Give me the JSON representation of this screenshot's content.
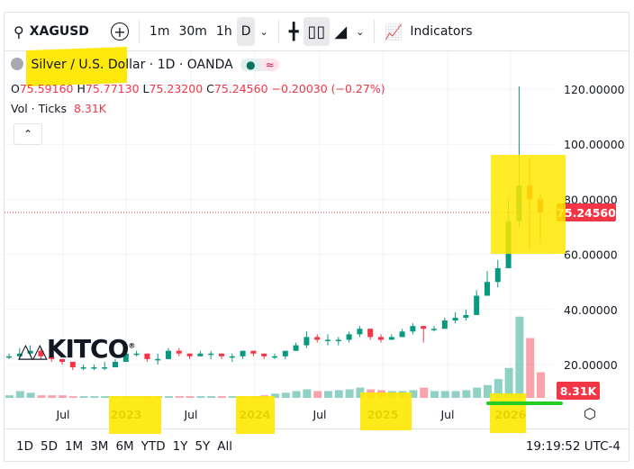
{
  "toolbar": {
    "symbol": "XAGUSD",
    "intervals": [
      "1m",
      "30m",
      "1h",
      "D"
    ],
    "indicators_label": "Indicators"
  },
  "legend": {
    "title": "Silver / U.S. Dollar",
    "interval": "· 1D ·",
    "exchange": "OANDA",
    "o_label": "O",
    "o": "75.59160",
    "h_label": "H",
    "h": "75.77130",
    "l_label": "L",
    "l": "75.23200",
    "c_label": "C",
    "c": "75.24560",
    "change": "−0.20030 (−0.27%)",
    "vol_label": "Vol · Ticks",
    "vol": "8.31K"
  },
  "watermark": "KITCO",
  "bottom": {
    "ranges": [
      "1D",
      "5D",
      "1M",
      "3M",
      "6M",
      "YTD",
      "1Y",
      "5Y",
      "All"
    ],
    "time": "19:19:52 UTC-4"
  },
  "colors": {
    "up": "#089981",
    "down": "#f23645",
    "highlight": "#ffe800",
    "underline": "#22cc22"
  },
  "chart_data": {
    "type": "candlestick",
    "symbol": "XAGUSD",
    "price_ticks": [
      "20.00000",
      "40.00000",
      "60.00000",
      "80.00000",
      "100.00000",
      "120.00000"
    ],
    "price_tick_values": [
      20,
      40,
      60,
      80,
      100,
      120
    ],
    "time_ticks": [
      "Jul",
      "2023",
      "Jul",
      "2024",
      "Jul",
      "2025",
      "Jul",
      "2026"
    ],
    "last_price_label": "75.24560",
    "last_price": 75.2456,
    "last_volume_label": "8.31K",
    "months": [
      "2022-01",
      "2022-02",
      "2022-03",
      "2022-04",
      "2022-05",
      "2022-06",
      "2022-07",
      "2022-08",
      "2022-09",
      "2022-10",
      "2022-11",
      "2022-12",
      "2023-01",
      "2023-02",
      "2023-03",
      "2023-04",
      "2023-05",
      "2023-06",
      "2023-07",
      "2023-08",
      "2023-09",
      "2023-10",
      "2023-11",
      "2023-12",
      "2024-01",
      "2024-02",
      "2024-03",
      "2024-04",
      "2024-05",
      "2024-06",
      "2024-07",
      "2024-08",
      "2024-09",
      "2024-10",
      "2024-11",
      "2024-12",
      "2025-01",
      "2025-02",
      "2025-03",
      "2025-04",
      "2025-05",
      "2025-06",
      "2025-07",
      "2025-08",
      "2025-09",
      "2025-10",
      "2025-11",
      "2025-12",
      "2026-01",
      "2026-02",
      "2026-03"
    ],
    "close": [
      23,
      24,
      25,
      23,
      22,
      21,
      19,
      19,
      19,
      19,
      21,
      24,
      24,
      22,
      22,
      25,
      24,
      23,
      24,
      24,
      23,
      23,
      25,
      24,
      23,
      23,
      25,
      27,
      30,
      29,
      29,
      29,
      31,
      33,
      30,
      29,
      30,
      32,
      34,
      33,
      33,
      36,
      37,
      38,
      45,
      50,
      55,
      72,
      85,
      80,
      75.25
    ],
    "high": [
      24,
      26,
      27,
      26,
      23,
      22,
      21,
      20,
      20,
      21,
      22,
      24,
      25,
      24,
      24,
      26,
      26,
      24,
      25,
      25,
      24,
      24,
      25,
      25,
      24,
      24,
      25,
      28,
      32,
      31,
      31,
      30,
      32,
      34,
      33,
      31,
      31,
      33,
      35,
      34,
      34,
      37,
      39,
      40,
      47,
      54,
      58,
      80,
      121,
      95,
      82
    ],
    "low": [
      22,
      22,
      23,
      22,
      21,
      20,
      18,
      18,
      18,
      18,
      19,
      21,
      23,
      21,
      20,
      22,
      23,
      22,
      23,
      22,
      22,
      21,
      22,
      23,
      22,
      22,
      22,
      25,
      26,
      28,
      27,
      27,
      28,
      30,
      29,
      28,
      29,
      30,
      31,
      28,
      32,
      33,
      35,
      36,
      38,
      45,
      48,
      55,
      70,
      62,
      64
    ],
    "volume_k": [
      3,
      8,
      6,
      3,
      3,
      3,
      2,
      2,
      2,
      2,
      2,
      2,
      2,
      2,
      2,
      2,
      2,
      2,
      2,
      2,
      2,
      2,
      2,
      2,
      3,
      5,
      6,
      8,
      10,
      8,
      8,
      9,
      10,
      12,
      10,
      9,
      8,
      8,
      9,
      12,
      8,
      8,
      8,
      9,
      12,
      15,
      22,
      35,
      95,
      70,
      30
    ]
  }
}
